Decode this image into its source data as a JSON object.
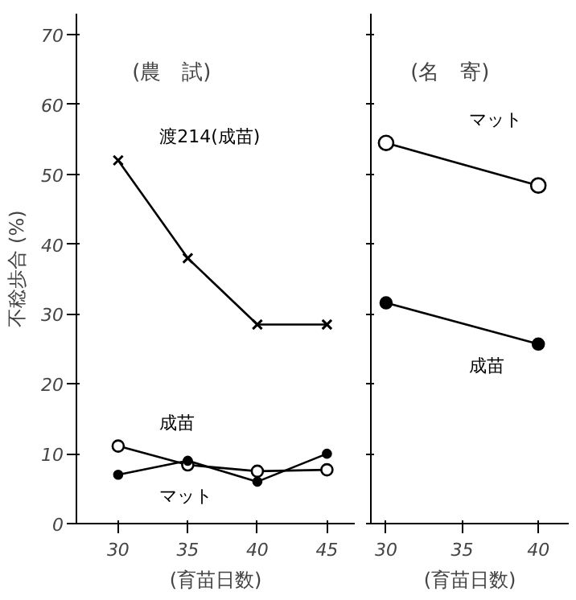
{
  "chart_data": [
    {
      "type": "line",
      "title": "(農　試)",
      "xlabel": "(育苗日数)",
      "ylabel": "不稔歩合 (%)",
      "x": [
        30,
        35,
        40,
        45
      ],
      "xlim": [
        27,
        47
      ],
      "xticks": [
        30,
        35,
        40,
        45
      ],
      "ylim": [
        0,
        73
      ],
      "yticks": [
        0,
        10,
        20,
        30,
        40,
        50,
        60,
        70
      ],
      "grid": false,
      "series": [
        {
          "name": "渡214(成苗)",
          "color": "#000000",
          "marker": "cross",
          "values": [
            52,
            38,
            28.5,
            28.5
          ]
        },
        {
          "name": "成苗",
          "color": "#000000",
          "marker": "circle",
          "values": [
            11.1,
            8.4,
            7.5,
            7.7
          ]
        },
        {
          "name": "マット",
          "color": "#000000",
          "marker": "circle",
          "values": [
            7,
            9,
            6,
            10
          ]
        }
      ]
    },
    {
      "type": "line",
      "title": "(名　寄)",
      "xlabel": "(育苗日数)",
      "x": [
        30,
        40
      ],
      "xlim": [
        29,
        42
      ],
      "xticks": [
        30,
        35,
        40
      ],
      "ylim": [
        0,
        73
      ],
      "yticks": [
        0,
        10,
        20,
        30,
        40,
        50,
        60,
        70
      ],
      "tick_labels": "x",
      "grid": false,
      "series": [
        {
          "name": "マット",
          "color": "#000000",
          "marker": "circle",
          "values": [
            54.5,
            48.4
          ]
        },
        {
          "name": "成苗",
          "color": "#000000",
          "marker": "circle",
          "values": [
            31.6,
            25.7
          ]
        }
      ]
    }
  ]
}
